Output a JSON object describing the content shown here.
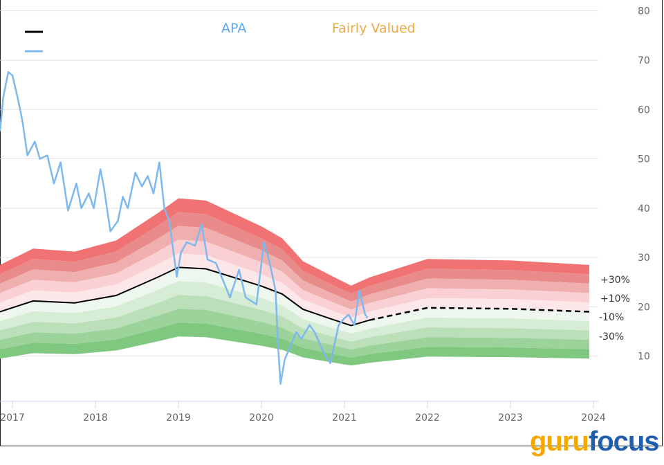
{
  "chart_data": {
    "type": "area",
    "legend": {
      "placement": "top",
      "items": [
        {
          "name": "APA",
          "color": "#5aa9f0",
          "swatch": "#7db8ee"
        },
        {
          "name": "Fairly Valued",
          "color": "#eda94a",
          "swatch": "#000000"
        }
      ]
    },
    "ylim": [
      0,
      80
    ],
    "y_ticks": [
      10,
      20,
      30,
      40,
      50,
      60,
      70,
      80
    ],
    "x_ticks": [
      "2017",
      "2018",
      "2019",
      "2020",
      "2021",
      "2022",
      "2023",
      "2024"
    ],
    "grid": "horizontal",
    "band_multipliers": [
      1.5,
      1.4,
      1.3,
      1.2,
      1.1,
      1.0,
      0.9,
      0.8,
      0.7,
      0.6,
      0.5
    ],
    "band_colors": [
      "#f07272",
      "#e98b8b",
      "#f0afaf",
      "#fbd0d4",
      "#fde7e9",
      "#eef7ee",
      "#d6ecd5",
      "#badfb9",
      "#9cd39b",
      "#80c780"
    ],
    "band_labels": [
      "+30%",
      "+10%",
      "-10%",
      "-30%"
    ],
    "fair_value": {
      "x": [
        2016.85,
        2017.25,
        2017.75,
        2018.25,
        2018.75,
        2019.0,
        2019.33,
        2019.6,
        2020.0,
        2020.25,
        2020.5,
        2020.83,
        2021.08,
        2021.3,
        2022.0,
        2023.0,
        2023.95
      ],
      "y": [
        19.0,
        21.2,
        20.8,
        22.3,
        26.0,
        28.0,
        27.7,
        26.3,
        24.2,
        22.6,
        19.5,
        17.6,
        16.2,
        17.3,
        19.8,
        19.6,
        19.0
      ],
      "projected_from": 2021.3
    },
    "price": {
      "name": "APA",
      "x": [
        2016.85,
        2016.89,
        2016.95,
        2017.0,
        2017.06,
        2017.12,
        2017.18,
        2017.27,
        2017.33,
        2017.42,
        2017.5,
        2017.58,
        2017.67,
        2017.77,
        2017.83,
        2017.92,
        2017.98,
        2018.06,
        2018.1,
        2018.18,
        2018.27,
        2018.33,
        2018.39,
        2018.48,
        2018.56,
        2018.63,
        2018.7,
        2018.77,
        2018.83,
        2018.89,
        2018.98,
        2019.03,
        2019.1,
        2019.2,
        2019.28,
        2019.35,
        2019.45,
        2019.52,
        2019.62,
        2019.73,
        2019.81,
        2019.94,
        2020.03,
        2020.1,
        2020.17,
        2020.2,
        2020.23,
        2020.28,
        2020.35,
        2020.42,
        2020.48,
        2020.58,
        2020.64,
        2020.77,
        2020.83,
        2020.93,
        2021.0,
        2021.05,
        2021.12,
        2021.18,
        2021.25,
        2021.28
      ],
      "y": [
        55.6,
        62.6,
        67.6,
        66.9,
        62.6,
        57.7,
        50.7,
        53.5,
        50.0,
        50.7,
        45.0,
        49.3,
        39.5,
        45.0,
        40.0,
        43.0,
        40.0,
        47.9,
        44.4,
        35.3,
        37.4,
        42.3,
        40.0,
        47.2,
        44.4,
        46.5,
        43.0,
        49.3,
        40.0,
        37.4,
        26.1,
        31.0,
        33.1,
        32.4,
        36.7,
        29.6,
        28.9,
        26.1,
        21.9,
        27.5,
        21.9,
        20.5,
        33.1,
        28.9,
        23.3,
        12.1,
        4.4,
        9.3,
        12.1,
        14.9,
        13.5,
        16.3,
        14.9,
        10.0,
        8.6,
        16.3,
        17.7,
        18.4,
        16.3,
        23.3,
        18.4,
        17.7
      ]
    }
  },
  "logo": {
    "part1": "guru",
    "part2": "focus",
    "color1": "#f5a800",
    "color2": "#1f5fad"
  }
}
